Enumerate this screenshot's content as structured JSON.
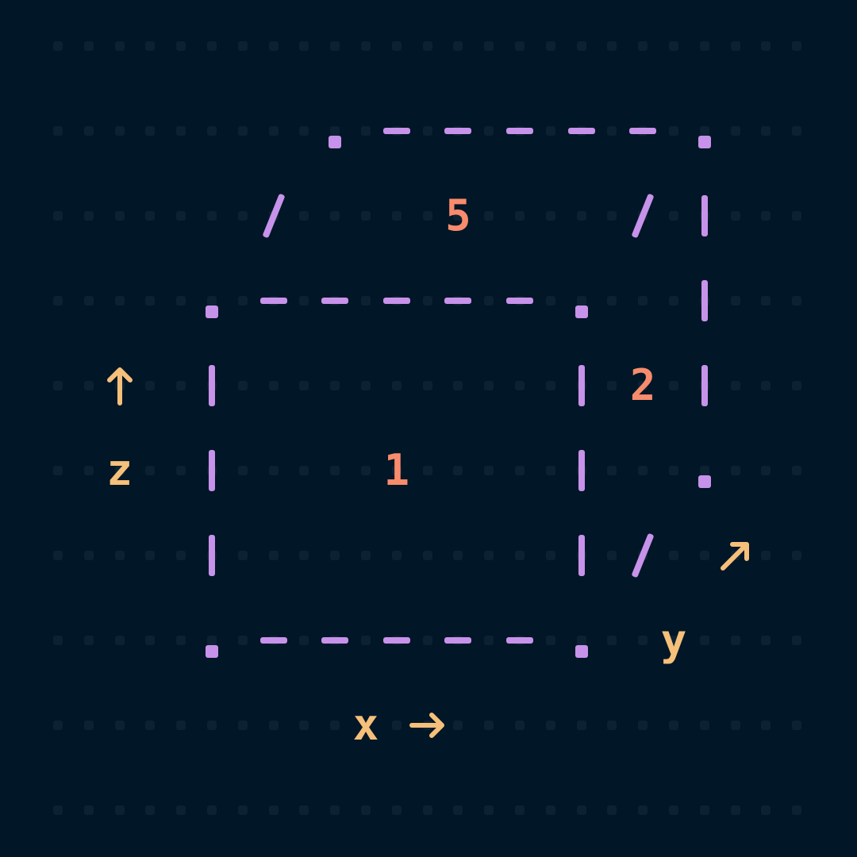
{
  "colors": {
    "background": "#011627",
    "grid_dot": "#0c2233",
    "cube_edges": "#c792ea",
    "face_labels": "#f78c6c",
    "axis_labels": "#f5c07a"
  },
  "faces": {
    "front": "1",
    "right": "2",
    "top": "5"
  },
  "axes": {
    "x": "x",
    "y": "y",
    "z": "z"
  },
  "icons": {
    "x_arrow": "arrow-right-icon",
    "y_arrow": "arrow-up-right-icon",
    "z_arrow": "arrow-up-icon"
  }
}
